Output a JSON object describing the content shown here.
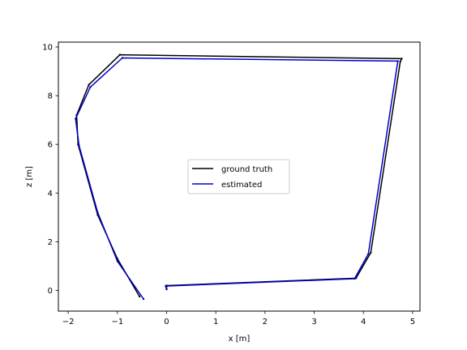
{
  "chart_data": {
    "type": "line",
    "title": "",
    "xlabel": "x [m]",
    "ylabel": "z [m]",
    "xlim": [
      -2.2,
      5.15
    ],
    "ylim": [
      -0.85,
      10.2
    ],
    "x_ticks": [
      -2,
      -1,
      0,
      1,
      2,
      3,
      4,
      5
    ],
    "y_ticks": [
      0,
      2,
      4,
      6,
      8,
      10
    ],
    "grid": false,
    "legend_position": "center",
    "series": [
      {
        "name": "ground truth",
        "color": "#000000",
        "points": [
          [
            -0.55,
            -0.25
          ],
          [
            -1.0,
            1.3
          ],
          [
            -1.4,
            3.1
          ],
          [
            -1.8,
            6.0
          ],
          [
            -1.83,
            7.2
          ],
          [
            -1.58,
            8.45
          ],
          [
            -0.95,
            9.68
          ],
          [
            4.78,
            9.52
          ],
          [
            4.75,
            9.4
          ],
          [
            4.15,
            1.55
          ],
          [
            3.85,
            0.5
          ],
          [
            0.0,
            0.2
          ],
          [
            0.0,
            0.05
          ]
        ]
      },
      {
        "name": "estimated",
        "color": "#0000cc",
        "points": [
          [
            -0.47,
            -0.35
          ],
          [
            -1.0,
            1.2
          ],
          [
            -1.4,
            3.2
          ],
          [
            -1.78,
            5.95
          ],
          [
            -1.85,
            7.05
          ],
          [
            -1.55,
            8.35
          ],
          [
            -0.9,
            9.55
          ],
          [
            4.7,
            9.42
          ],
          [
            4.1,
            1.5
          ],
          [
            3.82,
            0.48
          ],
          [
            -0.02,
            0.18
          ],
          [
            0.0,
            0.05
          ]
        ]
      }
    ]
  }
}
